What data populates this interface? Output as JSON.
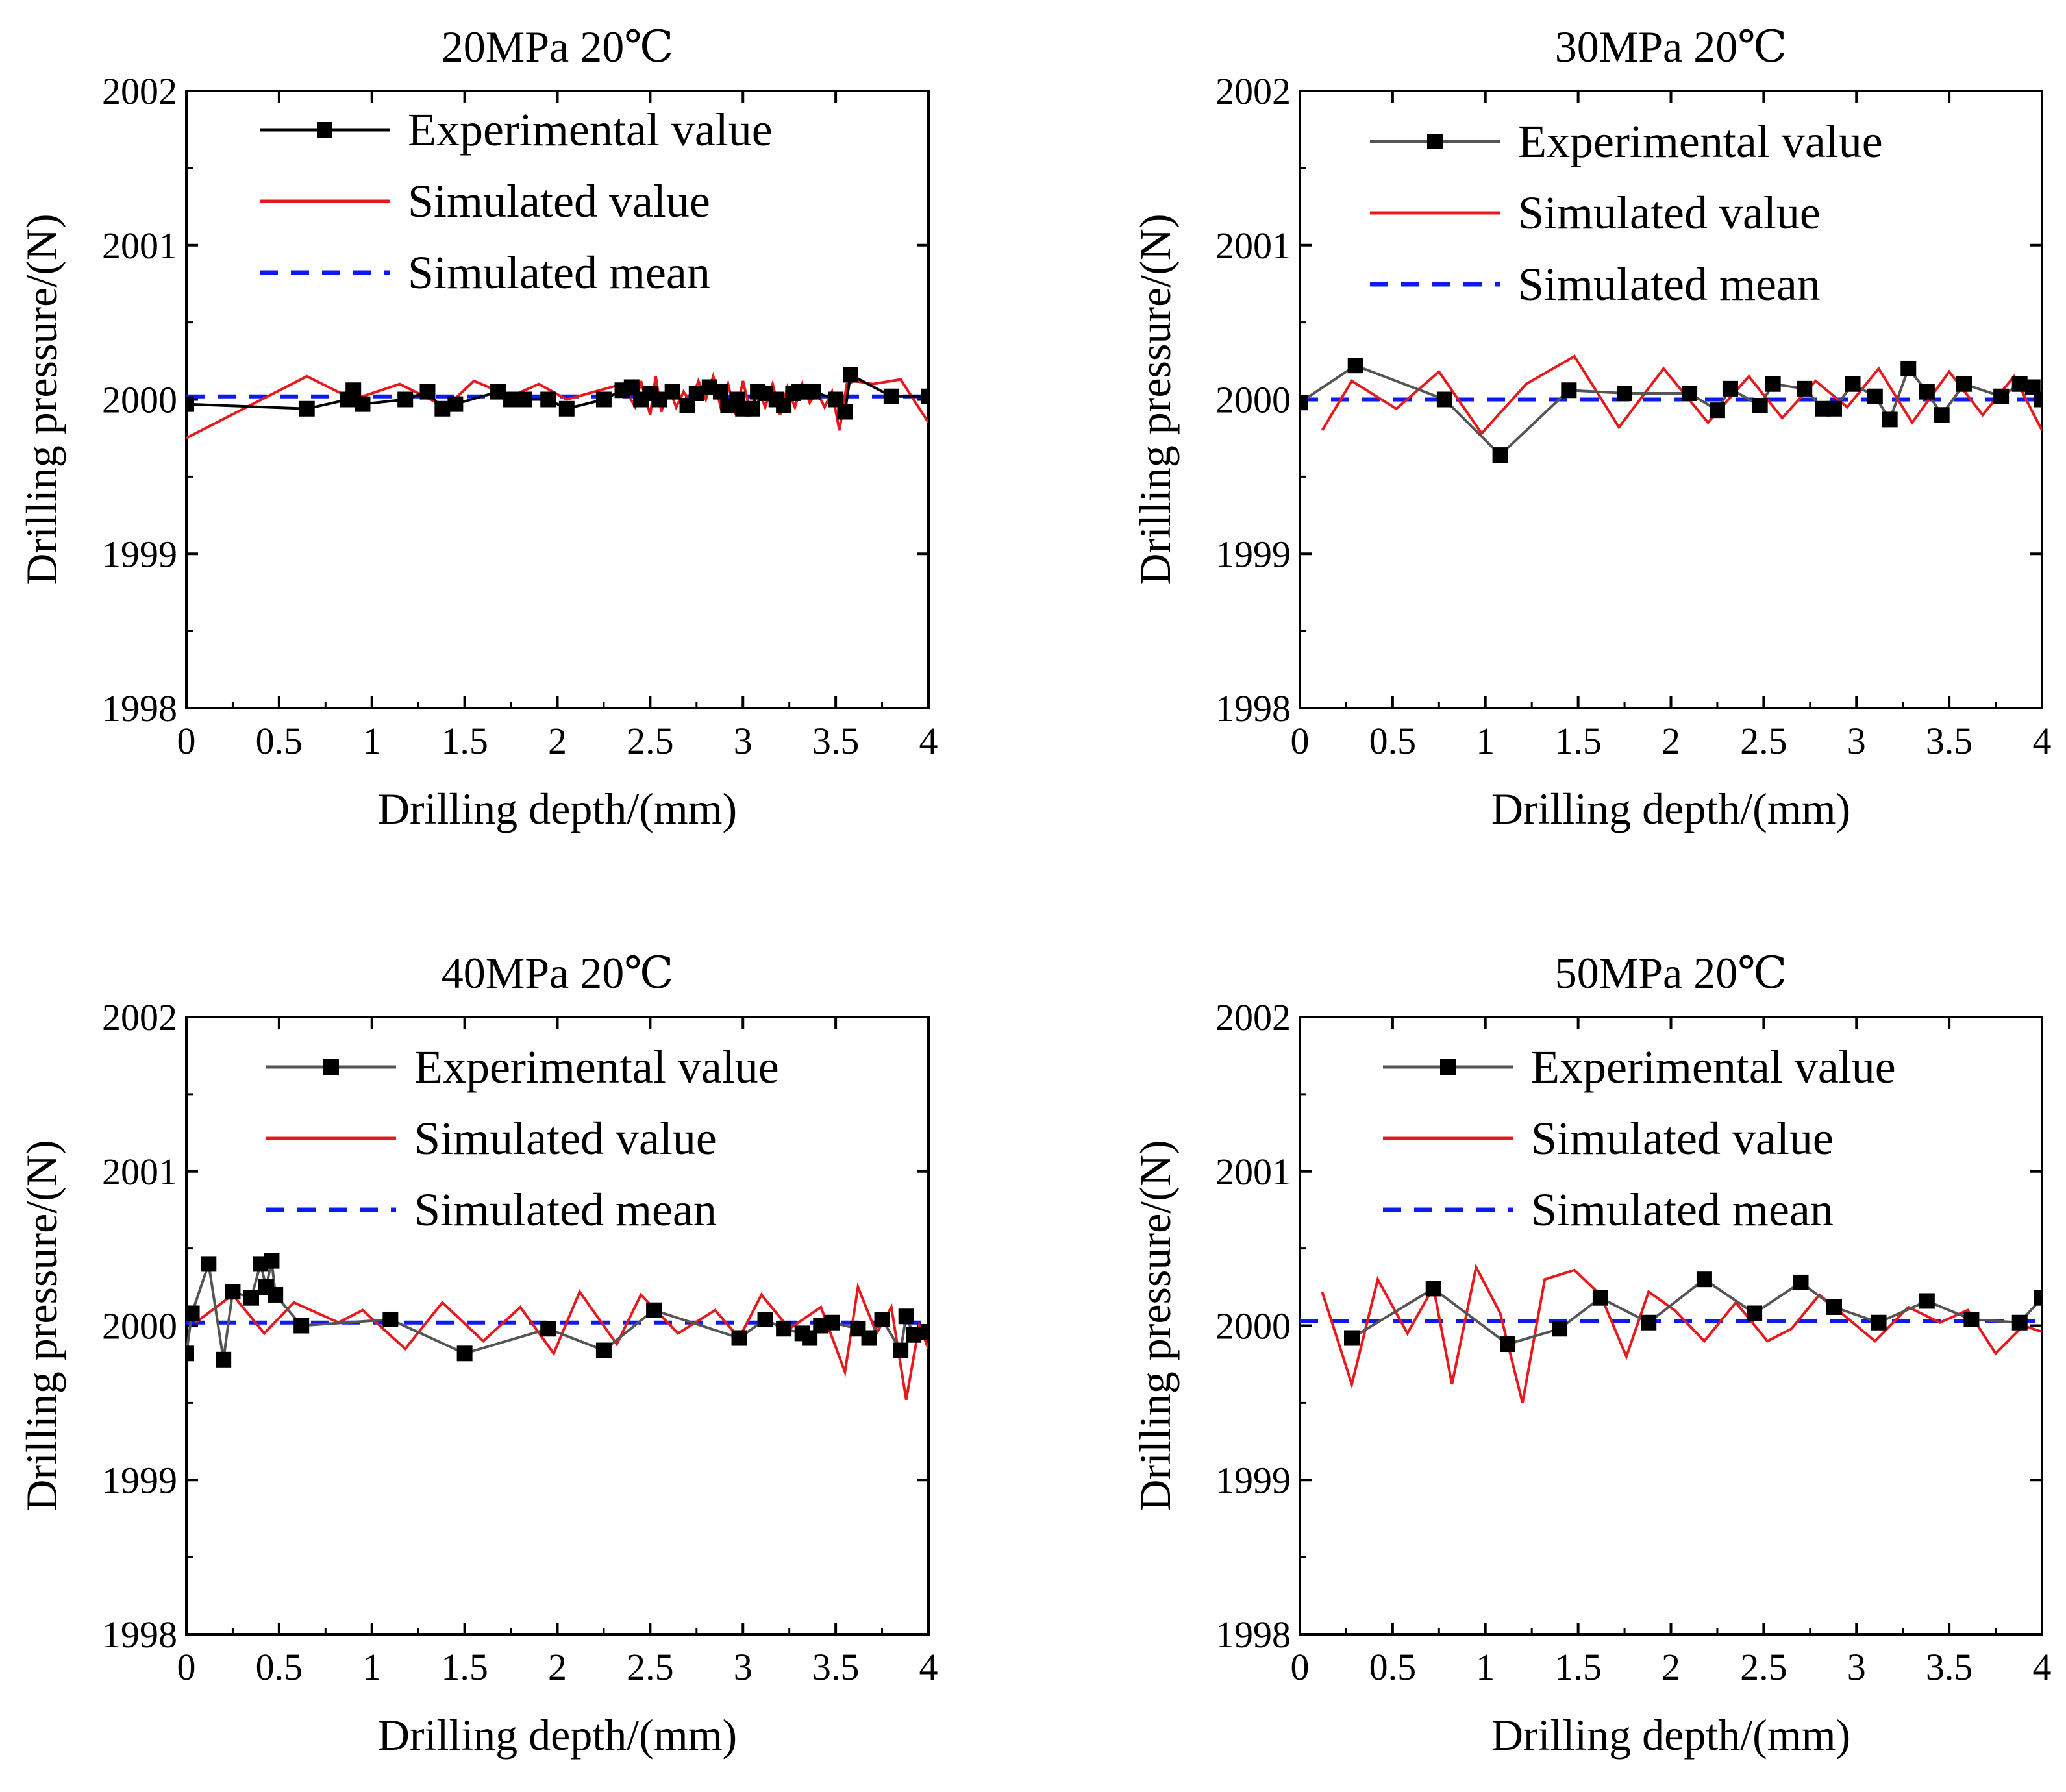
{
  "figure": {
    "name": "drilling-pressure-comparison"
  },
  "legend": {
    "experimental": "Experimental value",
    "simulated": "Simulated value",
    "mean": "Simulated mean"
  },
  "colors": {
    "experimental": "#000000",
    "experimental_line": "#555555",
    "simulated": "#e8191c",
    "mean": "#0d1bf2"
  },
  "chart_data": [
    {
      "type": "line",
      "title": "20MPa 20℃",
      "xlabel": "Drilling depth/(mm)",
      "ylabel": "Drilling pressure/(N)",
      "xlim": [
        0,
        4
      ],
      "ylim": [
        1998,
        2002
      ],
      "xticks": [
        0,
        0.5,
        1,
        1.5,
        2,
        2.5,
        3,
        3.5,
        4
      ],
      "xtick_labels": [
        "0",
        "0.5",
        "1",
        "1.5",
        "2",
        "2.5",
        "3",
        "3.5",
        "4"
      ],
      "yticks": [
        1998,
        1999,
        2000,
        2001,
        2002
      ],
      "ytick_labels": [
        "1998",
        "1999",
        "2000",
        "2001",
        "2002"
      ],
      "mean": 2000.02,
      "series": [
        {
          "name": "Experimental value",
          "x": [
            0,
            0.65,
            0.87,
            0.9,
            0.95,
            1.18,
            1.3,
            1.38,
            1.45,
            1.68,
            1.75,
            1.82,
            1.95,
            2.05,
            2.25,
            2.35,
            2.4,
            2.45,
            2.5,
            2.55,
            2.62,
            2.7,
            2.75,
            2.82,
            2.88,
            2.92,
            2.97,
            3.0,
            3.05,
            3.08,
            3.12,
            3.18,
            3.22,
            3.27,
            3.3,
            3.34,
            3.38,
            3.5,
            3.55,
            3.58,
            3.8,
            4.0
          ],
          "y": [
            1999.97,
            1999.94,
            2000.0,
            2000.06,
            1999.97,
            2000.0,
            2000.05,
            1999.94,
            1999.97,
            2000.05,
            2000.0,
            2000.0,
            2000.0,
            1999.94,
            2000.0,
            2000.06,
            2000.08,
            2000.0,
            2000.04,
            2000.0,
            2000.05,
            1999.96,
            2000.04,
            2000.08,
            2000.05,
            1999.96,
            2000.0,
            1999.94,
            1999.94,
            2000.05,
            2000.04,
            2000.0,
            1999.96,
            2000.04,
            2000.05,
            2000.05,
            2000.05,
            2000.0,
            1999.92,
            2000.16,
            2000.02,
            2000.02
          ]
        },
        {
          "name": "Simulated value",
          "x": [
            0,
            0.65,
            0.9,
            1.15,
            1.4,
            1.55,
            1.75,
            1.9,
            2.05,
            2.2,
            2.35,
            2.42,
            2.45,
            2.5,
            2.53,
            2.56,
            2.6,
            2.64,
            2.68,
            2.72,
            2.76,
            2.8,
            2.84,
            2.88,
            2.92,
            2.96,
            3.0,
            3.04,
            3.08,
            3.12,
            3.16,
            3.2,
            3.24,
            3.28,
            3.32,
            3.36,
            3.4,
            3.44,
            3.48,
            3.52,
            3.56,
            3.6,
            3.7,
            3.85,
            4.0
          ],
          "y": [
            1999.75,
            2000.15,
            2000.0,
            2000.1,
            1999.95,
            2000.12,
            2000.02,
            2000.1,
            2000.0,
            2000.05,
            2000.1,
            1999.95,
            2000.12,
            1999.9,
            2000.15,
            1999.92,
            2000.08,
            1999.95,
            2000.05,
            1999.98,
            2000.12,
            2000.0,
            2000.15,
            1999.95,
            2000.1,
            1999.9,
            2000.12,
            1999.92,
            2000.08,
            1999.95,
            2000.1,
            1999.9,
            2000.08,
            1999.95,
            2000.1,
            1999.98,
            2000.05,
            1999.95,
            2000.05,
            1999.8,
            2000.1,
            2000.12,
            2000.1,
            2000.13,
            1999.85
          ]
        }
      ]
    },
    {
      "type": "line",
      "title": "30MPa 20℃",
      "xlabel": "Drilling depth/(mm)",
      "ylabel": "Drilling pressure/(N)",
      "xlim": [
        0,
        4
      ],
      "ylim": [
        1998,
        2002
      ],
      "xticks": [
        0,
        0.5,
        1,
        1.5,
        2,
        2.5,
        3,
        3.5,
        4
      ],
      "xtick_labels": [
        "0",
        "0.5",
        "1",
        "1.5",
        "2",
        "2.5",
        "3",
        "3.5",
        "4"
      ],
      "yticks": [
        1998,
        1999,
        2000,
        2001,
        2002
      ],
      "ytick_labels": [
        "1998",
        "1999",
        "2000",
        "2001",
        "2002"
      ],
      "mean": 2000.0,
      "series": [
        {
          "name": "Experimental value",
          "x": [
            0,
            0.3,
            0.78,
            1.08,
            1.45,
            1.75,
            2.1,
            2.25,
            2.32,
            2.48,
            2.55,
            2.72,
            2.82,
            2.88,
            2.98,
            3.1,
            3.18,
            3.28,
            3.38,
            3.46,
            3.58,
            3.78,
            3.88,
            3.95,
            4.0
          ],
          "y": [
            1999.98,
            2000.22,
            2000.0,
            1999.64,
            2000.06,
            2000.04,
            2000.04,
            1999.93,
            2000.07,
            1999.96,
            2000.1,
            2000.07,
            1999.94,
            1999.94,
            2000.1,
            2000.02,
            1999.87,
            2000.2,
            2000.05,
            1999.9,
            2000.1,
            2000.02,
            2000.1,
            2000.08,
            2000.0
          ]
        },
        {
          "name": "Simulated value",
          "x": [
            0.12,
            0.28,
            0.52,
            0.75,
            0.98,
            1.22,
            1.48,
            1.72,
            1.96,
            2.2,
            2.42,
            2.6,
            2.78,
            2.95,
            3.12,
            3.3,
            3.5,
            3.68,
            3.85,
            4.0
          ],
          "y": [
            1999.8,
            2000.12,
            1999.94,
            2000.18,
            1999.78,
            2000.1,
            2000.28,
            1999.82,
            2000.2,
            1999.85,
            2000.15,
            1999.88,
            2000.12,
            1999.95,
            2000.2,
            1999.85,
            2000.18,
            1999.9,
            2000.15,
            1999.8
          ]
        }
      ]
    },
    {
      "type": "line",
      "title": "40MPa 20℃",
      "xlabel": "Drilling depth/(mm)",
      "ylabel": "Drilling pressure/(N)",
      "xlim": [
        0,
        4
      ],
      "ylim": [
        1998,
        2002
      ],
      "xticks": [
        0,
        0.5,
        1,
        1.5,
        2,
        2.5,
        3,
        3.5,
        4
      ],
      "xtick_labels": [
        "0",
        "0.5",
        "1",
        "1.5",
        "2",
        "2.5",
        "3",
        "3.5",
        "4"
      ],
      "yticks": [
        1998,
        1999,
        2000,
        2001,
        2002
      ],
      "ytick_labels": [
        "1998",
        "1999",
        "2000",
        "2001",
        "2002"
      ],
      "mean": 2000.02,
      "series": [
        {
          "name": "Experimental value",
          "x": [
            0,
            0.03,
            0.12,
            0.2,
            0.25,
            0.35,
            0.4,
            0.43,
            0.46,
            0.48,
            0.62,
            1.1,
            1.5,
            1.95,
            2.25,
            2.52,
            2.98,
            3.12,
            3.22,
            3.32,
            3.36,
            3.42,
            3.48,
            3.62,
            3.68,
            3.75,
            3.85,
            3.88,
            3.92,
            4.0
          ],
          "y": [
            1999.82,
            2000.08,
            2000.4,
            1999.78,
            2000.22,
            2000.18,
            2000.4,
            2000.25,
            2000.42,
            2000.2,
            2000.0,
            2000.04,
            1999.82,
            1999.98,
            1999.84,
            2000.1,
            1999.92,
            2000.04,
            1999.98,
            1999.95,
            1999.92,
            2000.0,
            2000.02,
            1999.98,
            1999.92,
            2000.04,
            1999.84,
            2000.06,
            1999.94,
            1999.96
          ]
        },
        {
          "name": "Simulated value",
          "x": [
            0.05,
            0.25,
            0.42,
            0.58,
            0.82,
            0.95,
            1.18,
            1.38,
            1.6,
            1.8,
            1.98,
            2.12,
            2.32,
            2.45,
            2.65,
            2.85,
            2.98,
            3.1,
            3.25,
            3.42,
            3.55,
            3.62,
            3.72,
            3.8,
            3.88,
            3.95,
            4.0
          ],
          "y": [
            2000.02,
            2000.2,
            1999.95,
            2000.15,
            2000.02,
            2000.1,
            1999.85,
            2000.15,
            1999.9,
            2000.12,
            1999.82,
            2000.22,
            1999.88,
            2000.2,
            1999.95,
            2000.1,
            1999.92,
            2000.2,
            1999.98,
            2000.12,
            1999.7,
            2000.25,
            1999.95,
            2000.12,
            1999.52,
            2000.0,
            1999.85
          ]
        }
      ]
    },
    {
      "type": "line",
      "title": "50MPa 20℃",
      "xlabel": "Drilling depth/(mm)",
      "ylabel": "Drilling pressure/(N)",
      "xlim": [
        0,
        4
      ],
      "ylim": [
        1998,
        2002
      ],
      "xticks": [
        0,
        0.5,
        1,
        1.5,
        2,
        2.5,
        3,
        3.5,
        4
      ],
      "xtick_labels": [
        "0",
        "0.5",
        "1",
        "1.5",
        "2",
        "2.5",
        "3",
        "3.5",
        "4"
      ],
      "yticks": [
        1998,
        1999,
        2000,
        2001,
        2002
      ],
      "ytick_labels": [
        "1998",
        "1999",
        "2000",
        "2001",
        "2002"
      ],
      "mean": 2000.03,
      "series": [
        {
          "name": "Experimental value",
          "x": [
            0.28,
            0.72,
            1.12,
            1.4,
            1.62,
            1.88,
            2.18,
            2.45,
            2.7,
            2.88,
            3.12,
            3.38,
            3.62,
            3.88,
            4.0
          ],
          "y": [
            1999.92,
            2000.24,
            1999.88,
            1999.98,
            2000.18,
            2000.02,
            2000.3,
            2000.08,
            2000.28,
            2000.12,
            2000.02,
            2000.16,
            2000.04,
            2000.02,
            2000.18
          ]
        },
        {
          "name": "Simulated value",
          "x": [
            0.12,
            0.28,
            0.42,
            0.58,
            0.72,
            0.82,
            0.95,
            1.08,
            1.2,
            1.32,
            1.48,
            1.62,
            1.76,
            1.88,
            2.02,
            2.18,
            2.35,
            2.52,
            2.65,
            2.8,
            2.95,
            3.1,
            3.28,
            3.45,
            3.6,
            3.75,
            3.9,
            4.0
          ],
          "y": [
            2000.22,
            1999.62,
            2000.3,
            1999.95,
            2000.25,
            1999.62,
            2000.38,
            2000.08,
            1999.5,
            2000.3,
            2000.36,
            2000.2,
            1999.8,
            2000.22,
            2000.1,
            1999.9,
            2000.15,
            1999.9,
            1999.98,
            2000.2,
            2000.05,
            1999.9,
            2000.12,
            2000.02,
            2000.1,
            1999.82,
            2000.0,
            1999.96
          ]
        }
      ]
    }
  ]
}
